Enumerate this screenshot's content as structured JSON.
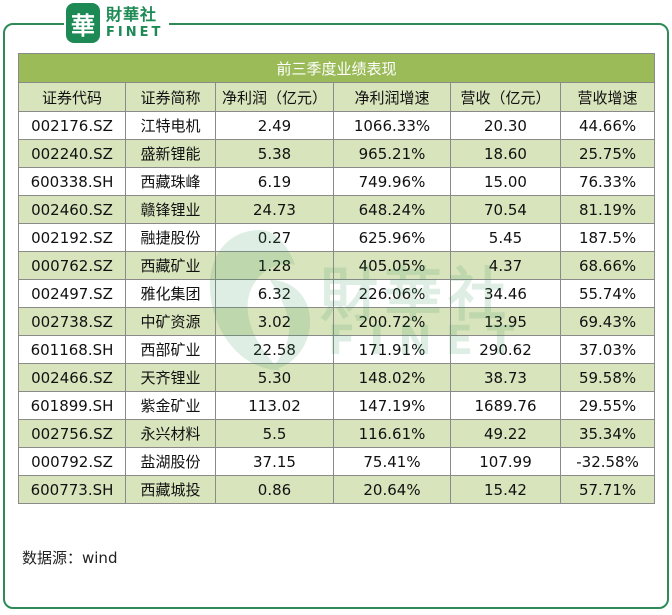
{
  "logo": {
    "badge_char": "華",
    "cn": "財華社",
    "en": "FINET"
  },
  "watermark": {
    "cn": "財華社",
    "en": "FINET"
  },
  "table": {
    "title": "前三季度业绩表现",
    "headers": [
      "证券代码",
      "证券简称",
      "净利润（亿元）",
      "净利润增速",
      "营收（亿元）",
      "营收增速"
    ],
    "rows": [
      [
        "002176.SZ",
        "江特电机",
        "2.49",
        "1066.33%",
        "20.30",
        "44.66%"
      ],
      [
        "002240.SZ",
        "盛新锂能",
        "5.38",
        "965.21%",
        "18.60",
        "25.75%"
      ],
      [
        "600338.SH",
        "西藏珠峰",
        "6.19",
        "749.96%",
        "15.00",
        "76.33%"
      ],
      [
        "002460.SZ",
        "赣锋锂业",
        "24.73",
        "648.24%",
        "70.54",
        "81.19%"
      ],
      [
        "002192.SZ",
        "融捷股份",
        "0.27",
        "625.96%",
        "5.45",
        "187.5%"
      ],
      [
        "000762.SZ",
        "西藏矿业",
        "1.28",
        "405.05%",
        "4.37",
        "68.66%"
      ],
      [
        "002497.SZ",
        "雅化集团",
        "6.32",
        "226.06%",
        "34.46",
        "55.74%"
      ],
      [
        "002738.SZ",
        "中矿资源",
        "3.02",
        "200.72%",
        "13.95",
        "69.43%"
      ],
      [
        "601168.SH",
        "西部矿业",
        "22.58",
        "171.91%",
        "290.62",
        "37.03%"
      ],
      [
        "002466.SZ",
        "天齐锂业",
        "5.30",
        "148.02%",
        "38.73",
        "59.58%"
      ],
      [
        "601899.SH",
        "紫金矿业",
        "113.02",
        "147.19%",
        "1689.76",
        "29.55%"
      ],
      [
        "002756.SZ",
        "永兴材料",
        "5.5",
        "116.61%",
        "49.22",
        "35.34%"
      ],
      [
        "000792.SZ",
        "盐湖股份",
        "37.15",
        "75.41%",
        "107.99",
        "-32.58%"
      ],
      [
        "600773.SH",
        "西藏城投",
        "0.86",
        "20.64%",
        "15.42",
        "57.71%"
      ]
    ]
  },
  "source": "数据源：wind",
  "colors": {
    "brand_green": "#1d8a55",
    "title_bar": "#9bbb59",
    "band": "#d8e4bc"
  }
}
